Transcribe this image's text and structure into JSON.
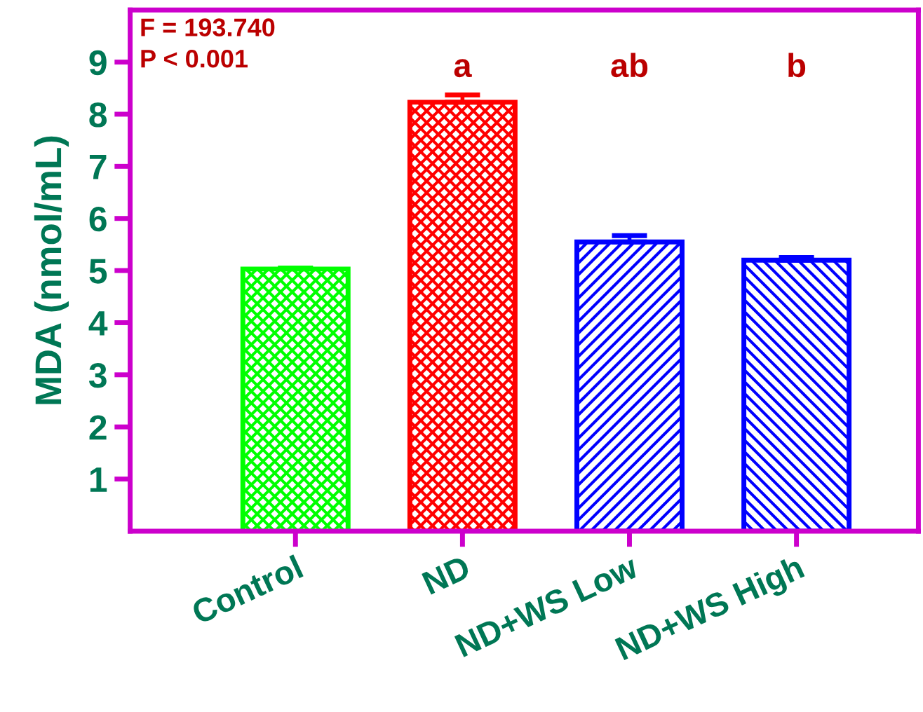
{
  "chart_data": {
    "type": "bar",
    "ylabel": "MDA (nmol/mL)",
    "categories": [
      "Control",
      "ND",
      "ND+WS Low",
      "ND+WS High"
    ],
    "values": [
      5.03,
      8.23,
      5.55,
      5.2
    ],
    "colors": [
      "#00ff00",
      "#ff0000",
      "#0000ff",
      "#0000ff"
    ],
    "errors": [
      [
        5.03,
        5.05
      ],
      [
        8.23,
        8.37
      ],
      [
        5.55,
        5.67
      ],
      [
        5.2,
        5.25
      ]
    ],
    "ylim": [
      0,
      10
    ],
    "yticks": [
      1,
      2,
      3,
      4,
      5,
      6,
      7,
      8,
      9
    ],
    "grid": false,
    "legend": false,
    "annotations": [
      "F = 193.740",
      "P < 0.001",
      "a",
      "ab",
      "b"
    ]
  }
}
